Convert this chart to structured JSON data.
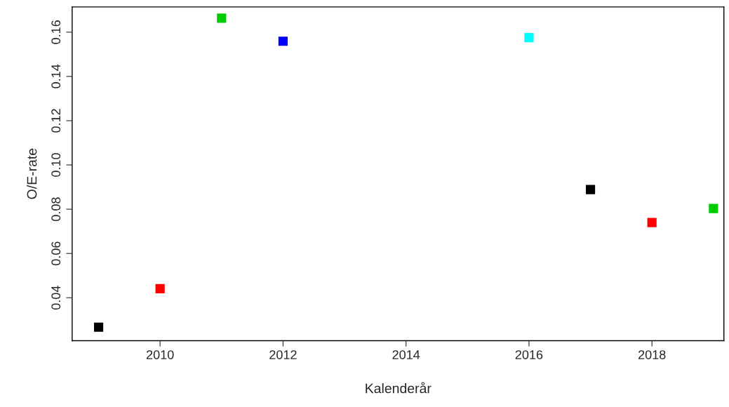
{
  "chart_data": {
    "type": "scatter",
    "xlabel": "Kalenderår",
    "ylabel": "O/E-rate",
    "x": [
      2009,
      2010,
      2011,
      2012,
      2016,
      2017,
      2018,
      2019
    ],
    "values": [
      0.0267,
      0.0441,
      0.1663,
      0.1559,
      0.1575,
      0.0889,
      0.074,
      0.0803
    ],
    "colors": [
      "#000000",
      "#ff0000",
      "#00cd00",
      "#0000ff",
      "#00ffff",
      "#000000",
      "#ff0000",
      "#00cd00"
    ],
    "marker": "square",
    "grid": false,
    "xlim": [
      2008.57,
      2019.17
    ],
    "xticks": [
      2010,
      2012,
      2014,
      2016,
      2018
    ],
    "ylim": [
      0.0206,
      0.1714
    ],
    "yticks": [
      0.04,
      0.06,
      0.08,
      {
        "value": 0.1,
        "label": "0.10"
      },
      0.12,
      0.14,
      0.16
    ]
  }
}
